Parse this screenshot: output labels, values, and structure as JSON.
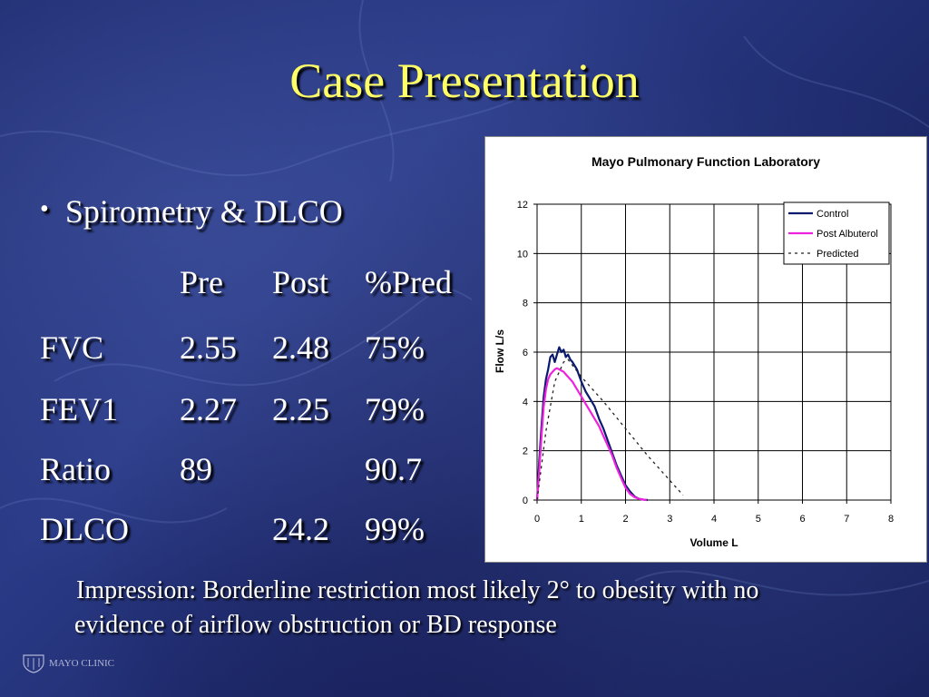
{
  "slide": {
    "title": "Case Presentation",
    "bullet": "Spirometry & DLCO",
    "table": {
      "headers": [
        "Pre",
        "Post",
        "%Pred"
      ],
      "rows": [
        {
          "label": "FVC",
          "pre": "2.55",
          "post": "2.48",
          "pred": "75%"
        },
        {
          "label": "FEV1",
          "pre": "2.27",
          "post": "2.25",
          "pred": "79%"
        },
        {
          "label": "Ratio",
          "pre": "89",
          "post": "",
          "pred": "90.7"
        },
        {
          "label": "DLCO",
          "pre": "",
          "post": "24.2",
          "pred": "99%"
        }
      ]
    },
    "impression_line1": "Impression:  Borderline restriction most likely 2° to obesity with no",
    "impression_line2": "evidence of airflow obstruction or BD response",
    "logo_text": "MAYO CLINIC"
  },
  "chart_data": {
    "type": "line",
    "title": "Mayo Pulmonary Function Laboratory",
    "xlabel": "Volume L",
    "ylabel": "Flow L/s",
    "xlim": [
      0,
      8
    ],
    "ylim": [
      0,
      12
    ],
    "xticks": [
      "0",
      "1",
      "2",
      "3",
      "4",
      "5",
      "6",
      "7",
      "8"
    ],
    "yticks": [
      "0",
      "2",
      "4",
      "6",
      "8",
      "10",
      "12"
    ],
    "grid": true,
    "legend_position": "top-right",
    "series": [
      {
        "name": "Control",
        "color": "#0a1a6e",
        "style": "solid",
        "x": [
          0,
          0.05,
          0.1,
          0.15,
          0.2,
          0.25,
          0.3,
          0.35,
          0.4,
          0.45,
          0.5,
          0.55,
          0.6,
          0.65,
          0.7,
          0.75,
          0.8,
          0.9,
          1.0,
          1.1,
          1.2,
          1.3,
          1.4,
          1.5,
          1.6,
          1.7,
          1.8,
          1.9,
          2.0,
          2.1,
          2.2,
          2.3,
          2.4,
          2.5
        ],
        "y": [
          0,
          1.6,
          3.0,
          4.2,
          4.9,
          5.3,
          5.8,
          5.9,
          5.6,
          5.9,
          6.2,
          6.0,
          6.1,
          5.8,
          5.9,
          5.7,
          5.6,
          5.3,
          4.8,
          4.4,
          4.1,
          3.8,
          3.3,
          2.9,
          2.4,
          1.9,
          1.4,
          1.0,
          0.6,
          0.35,
          0.15,
          0.05,
          0.02,
          0
        ]
      },
      {
        "name": "Post Albuterol",
        "color": "#ee22dd",
        "style": "solid",
        "x": [
          0,
          0.05,
          0.1,
          0.15,
          0.2,
          0.25,
          0.3,
          0.35,
          0.4,
          0.45,
          0.5,
          0.55,
          0.6,
          0.65,
          0.7,
          0.8,
          0.9,
          1.0,
          1.1,
          1.2,
          1.3,
          1.4,
          1.5,
          1.6,
          1.7,
          1.8,
          1.9,
          2.0,
          2.1,
          2.2,
          2.3,
          2.4,
          2.48
        ],
        "y": [
          0,
          1.2,
          2.6,
          3.8,
          4.5,
          4.9,
          5.1,
          5.2,
          5.3,
          5.35,
          5.3,
          5.25,
          5.2,
          5.1,
          5.0,
          4.8,
          4.5,
          4.2,
          3.9,
          3.6,
          3.3,
          3.0,
          2.6,
          2.2,
          1.8,
          1.3,
          0.9,
          0.5,
          0.25,
          0.12,
          0.05,
          0.02,
          0
        ]
      },
      {
        "name": "Predicted",
        "color": "#222222",
        "style": "dotted",
        "x": [
          0,
          0.2,
          0.4,
          0.6,
          0.7,
          1.0,
          1.5,
          2.0,
          2.5,
          3.0,
          3.3
        ],
        "y": [
          0,
          2.8,
          4.8,
          5.6,
          5.7,
          5.0,
          4.0,
          2.9,
          1.8,
          0.8,
          0.2
        ]
      }
    ]
  }
}
